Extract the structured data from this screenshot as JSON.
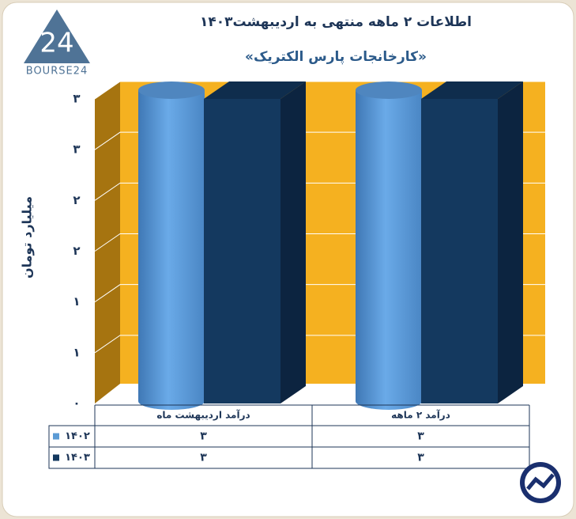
{
  "logo": {
    "mark": "24",
    "text": "BOURSE24"
  },
  "chart_data": {
    "type": "bar3d",
    "title": "اطلاعات ۲ ماهه منتهی به اردیبهشت۱۴۰۳",
    "subtitle": "«کارخانجات پارس الکتریک»",
    "y_label": "میلیارد تومان",
    "categories": [
      "درآمد اردیبهشت ماه",
      "درآمد ۲ ماهه"
    ],
    "series": [
      {
        "name": "۱۴۰۲",
        "color": "#5b9bd5",
        "values": [
          3,
          3
        ],
        "value_labels": [
          "۳",
          "۳"
        ]
      },
      {
        "name": "۱۴۰۳",
        "color": "#14395f",
        "values": [
          3,
          3
        ],
        "value_labels": [
          "۳",
          "۳"
        ]
      }
    ],
    "ylim": [
      0,
      3
    ],
    "yticks": [
      {
        "value": 0,
        "label": "۰"
      },
      {
        "value": 0.5,
        "label": "۱"
      },
      {
        "value": 1,
        "label": "۱"
      },
      {
        "value": 1.5,
        "label": "۲"
      },
      {
        "value": 2,
        "label": "۲"
      },
      {
        "value": 2.5,
        "label": "۳"
      },
      {
        "value": 3,
        "label": "۳"
      }
    ],
    "grid": true
  }
}
